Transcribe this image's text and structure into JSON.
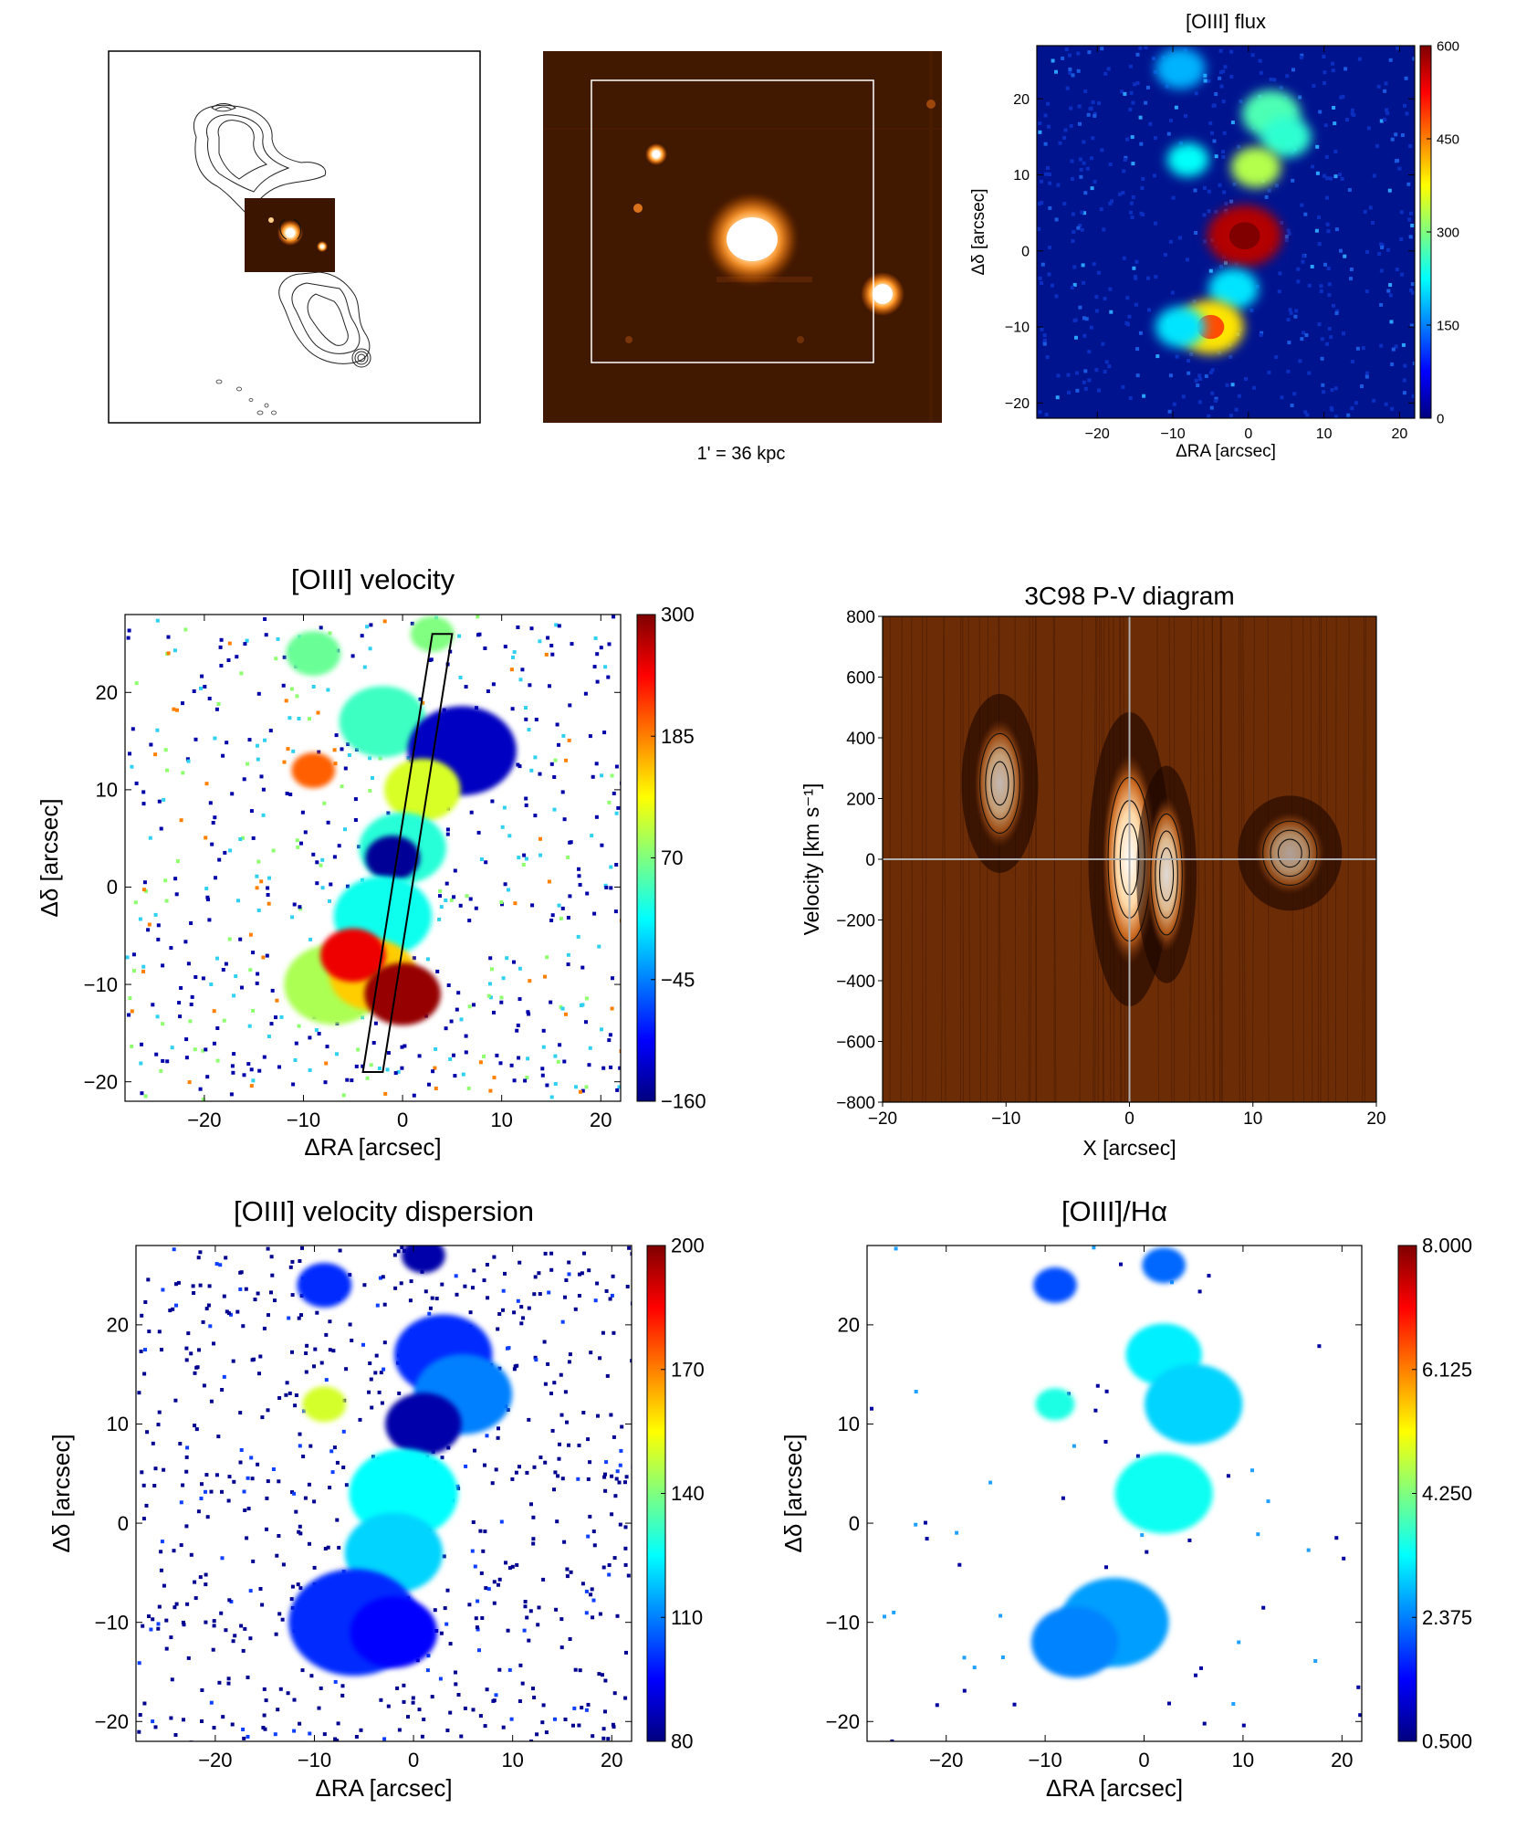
{
  "figure": {
    "radio_panel": {
      "caption": ""
    },
    "optical_panel": {
      "caption": "1' = 36 kpc"
    }
  },
  "chart_data": [
    {
      "id": "oiii_flux",
      "type": "heatmap",
      "title": "[OIII] flux",
      "xlabel": "ΔRA [arcsec]",
      "ylabel": "Δδ [arcsec]",
      "xlim": [
        -28,
        22
      ],
      "ylim": [
        -22,
        27
      ],
      "xticks": [
        -20,
        -10,
        0,
        10,
        20
      ],
      "yticks": [
        -20,
        -10,
        0,
        10,
        20
      ],
      "colorbar": {
        "ticks": [
          "0",
          "150",
          "300",
          "450",
          "600"
        ],
        "range": [
          0,
          600
        ]
      },
      "background_color": "#00108f",
      "blobs": [
        {
          "x": -9,
          "y": 24,
          "level": 0.3
        },
        {
          "x": 3,
          "y": 18,
          "level": 0.45
        },
        {
          "x": 5,
          "y": 15,
          "level": 0.42
        },
        {
          "x": 1,
          "y": 11,
          "level": 0.55
        },
        {
          "x": -8,
          "y": 12,
          "level": 0.38
        },
        {
          "x": -0.5,
          "y": 2,
          "level": 0.95
        },
        {
          "x": -2,
          "y": -5,
          "level": 0.35
        },
        {
          "x": -5,
          "y": -10,
          "level": 0.65
        },
        {
          "x": -9,
          "y": -10,
          "level": 0.35
        }
      ]
    },
    {
      "id": "oiii_velocity",
      "type": "heatmap",
      "title": "[OIII] velocity",
      "xlabel": "ΔRA [arcsec]",
      "ylabel": "Δδ [arcsec]",
      "xlim": [
        -28,
        22
      ],
      "ylim": [
        -22,
        28
      ],
      "xticks": [
        -20,
        -10,
        0,
        10,
        20
      ],
      "yticks": [
        -20,
        -10,
        0,
        10,
        20
      ],
      "colorbar": {
        "ticks": [
          "300",
          "185",
          "70",
          "−45",
          "−160"
        ],
        "range": [
          -160,
          300
        ]
      },
      "slit": {
        "corners": [
          [
            -4,
            -19
          ],
          [
            -2,
            -19
          ],
          [
            5,
            26
          ],
          [
            3,
            26
          ]
        ]
      },
      "blobs": [
        {
          "x": -9,
          "y": 24,
          "value": 60
        },
        {
          "x": 3,
          "y": 26,
          "value": 70
        },
        {
          "x": -2,
          "y": 17,
          "value": 40
        },
        {
          "x": 6,
          "y": 14,
          "value": -130
        },
        {
          "x": 2,
          "y": 10,
          "value": 110
        },
        {
          "x": -9,
          "y": 12,
          "value": 200
        },
        {
          "x": 0,
          "y": 4,
          "value": 30
        },
        {
          "x": -1,
          "y": 3,
          "value": -150
        },
        {
          "x": -2,
          "y": -3,
          "value": 20
        },
        {
          "x": -7,
          "y": -10,
          "value": 90
        },
        {
          "x": -3,
          "y": -9,
          "value": 150
        },
        {
          "x": -5,
          "y": -7,
          "value": 250
        },
        {
          "x": 0,
          "y": -11,
          "value": 290
        }
      ]
    },
    {
      "id": "pv_diagram",
      "type": "heatmap",
      "title": "3C98 P-V diagram",
      "xlabel": "X [arcsec]",
      "ylabel": "Velocity [km s⁻¹]",
      "xlim": [
        -20,
        20
      ],
      "ylim": [
        -800,
        800
      ],
      "xticks": [
        -20,
        -10,
        0,
        10,
        20
      ],
      "yticks": [
        800,
        600,
        400,
        200,
        0,
        -200,
        -400,
        -600,
        -800
      ],
      "blobs": [
        {
          "x": -10.5,
          "v": 250,
          "peak": 0.7
        },
        {
          "x": 0,
          "v": 0,
          "peak": 1.0
        },
        {
          "x": 3,
          "v": -50,
          "peak": 0.85
        },
        {
          "x": 13,
          "v": 20,
          "peak": 0.6
        }
      ]
    },
    {
      "id": "oiii_dispersion",
      "type": "heatmap",
      "title": "[OIII] velocity dispersion",
      "xlabel": "ΔRA [arcsec]",
      "ylabel": "Δδ [arcsec]",
      "xlim": [
        -28,
        22
      ],
      "ylim": [
        -22,
        28
      ],
      "xticks": [
        -20,
        -10,
        0,
        10,
        20
      ],
      "yticks": [
        -20,
        -10,
        0,
        10,
        20
      ],
      "colorbar": {
        "ticks": [
          "200",
          "170",
          "140",
          "110",
          "80"
        ],
        "range": [
          80,
          200
        ]
      },
      "blobs": [
        {
          "x": -9,
          "y": 24,
          "value": 100
        },
        {
          "x": 1,
          "y": 27,
          "value": 85
        },
        {
          "x": 3,
          "y": 17,
          "value": 100
        },
        {
          "x": 5,
          "y": 13,
          "value": 110
        },
        {
          "x": 1,
          "y": 10,
          "value": 85
        },
        {
          "x": -9,
          "y": 12,
          "value": 150
        },
        {
          "x": -1,
          "y": 3,
          "value": 125
        },
        {
          "x": -2,
          "y": -3,
          "value": 120
        },
        {
          "x": -6,
          "y": -10,
          "value": 100
        },
        {
          "x": -2,
          "y": -11,
          "value": 95
        }
      ]
    },
    {
      "id": "oiii_halpha",
      "type": "heatmap",
      "title": "[OIII]/Hα",
      "xlabel": "ΔRA [arcsec]",
      "ylabel": "Δδ [arcsec]",
      "xlim": [
        -28,
        22
      ],
      "ylim": [
        -22,
        28
      ],
      "xticks": [
        -20,
        -10,
        0,
        10,
        20
      ],
      "yticks": [
        -20,
        -10,
        0,
        10,
        20
      ],
      "colorbar": {
        "ticks": [
          "8.000",
          "6.125",
          "4.250",
          "2.375",
          "0.500"
        ],
        "range": [
          0.5,
          8.0
        ]
      },
      "blobs": [
        {
          "x": -9,
          "y": 24,
          "value": 2.0
        },
        {
          "x": 2,
          "y": 26,
          "value": 2.2
        },
        {
          "x": 2,
          "y": 17,
          "value": 3.2
        },
        {
          "x": 5,
          "y": 12,
          "value": 3.0
        },
        {
          "x": -9,
          "y": 12,
          "value": 3.5
        },
        {
          "x": 2,
          "y": 3,
          "value": 3.4
        },
        {
          "x": -3,
          "y": -10,
          "value": 2.6
        },
        {
          "x": -7,
          "y": -12,
          "value": 2.4
        }
      ]
    }
  ]
}
